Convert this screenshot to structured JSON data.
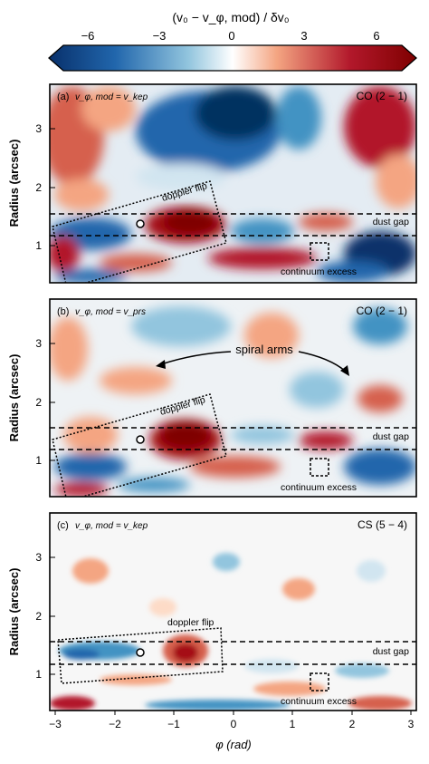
{
  "colorbar": {
    "title": "(v₀ − v_φ, mod) / δv₀",
    "ticks": [
      "−6",
      "−3",
      "0",
      "3",
      "6"
    ],
    "colors": {
      "neg": "#08306b",
      "mid": "#ffffff",
      "pos": "#7f0000"
    }
  },
  "axes": {
    "ylabel": "Radius   (arcsec)",
    "xlabel": "φ   (rad)",
    "xticks": [
      "−3",
      "−2",
      "−1",
      "0",
      "1",
      "2",
      "3"
    ],
    "yticks": [
      "1",
      "2",
      "3"
    ]
  },
  "panels": [
    {
      "label": "(a)",
      "model": "v_φ, mod = v_kep",
      "line": "CO (2 − 1)",
      "flip": "doppler flip",
      "gap": "dust gap",
      "excess": "continuum excess"
    },
    {
      "label": "(b)",
      "model": "v_φ, mod = v_prs",
      "line": "CO (2 − 1)",
      "flip": "doppler flip",
      "gap": "dust gap",
      "excess": "continuum excess",
      "spiral": "spiral arms"
    },
    {
      "label": "(c)",
      "model": "v_φ, mod = v_kep",
      "line": "CS (5 − 4)",
      "flip": "doppler flip",
      "gap": "dust gap",
      "excess": "continuum excess"
    }
  ]
}
